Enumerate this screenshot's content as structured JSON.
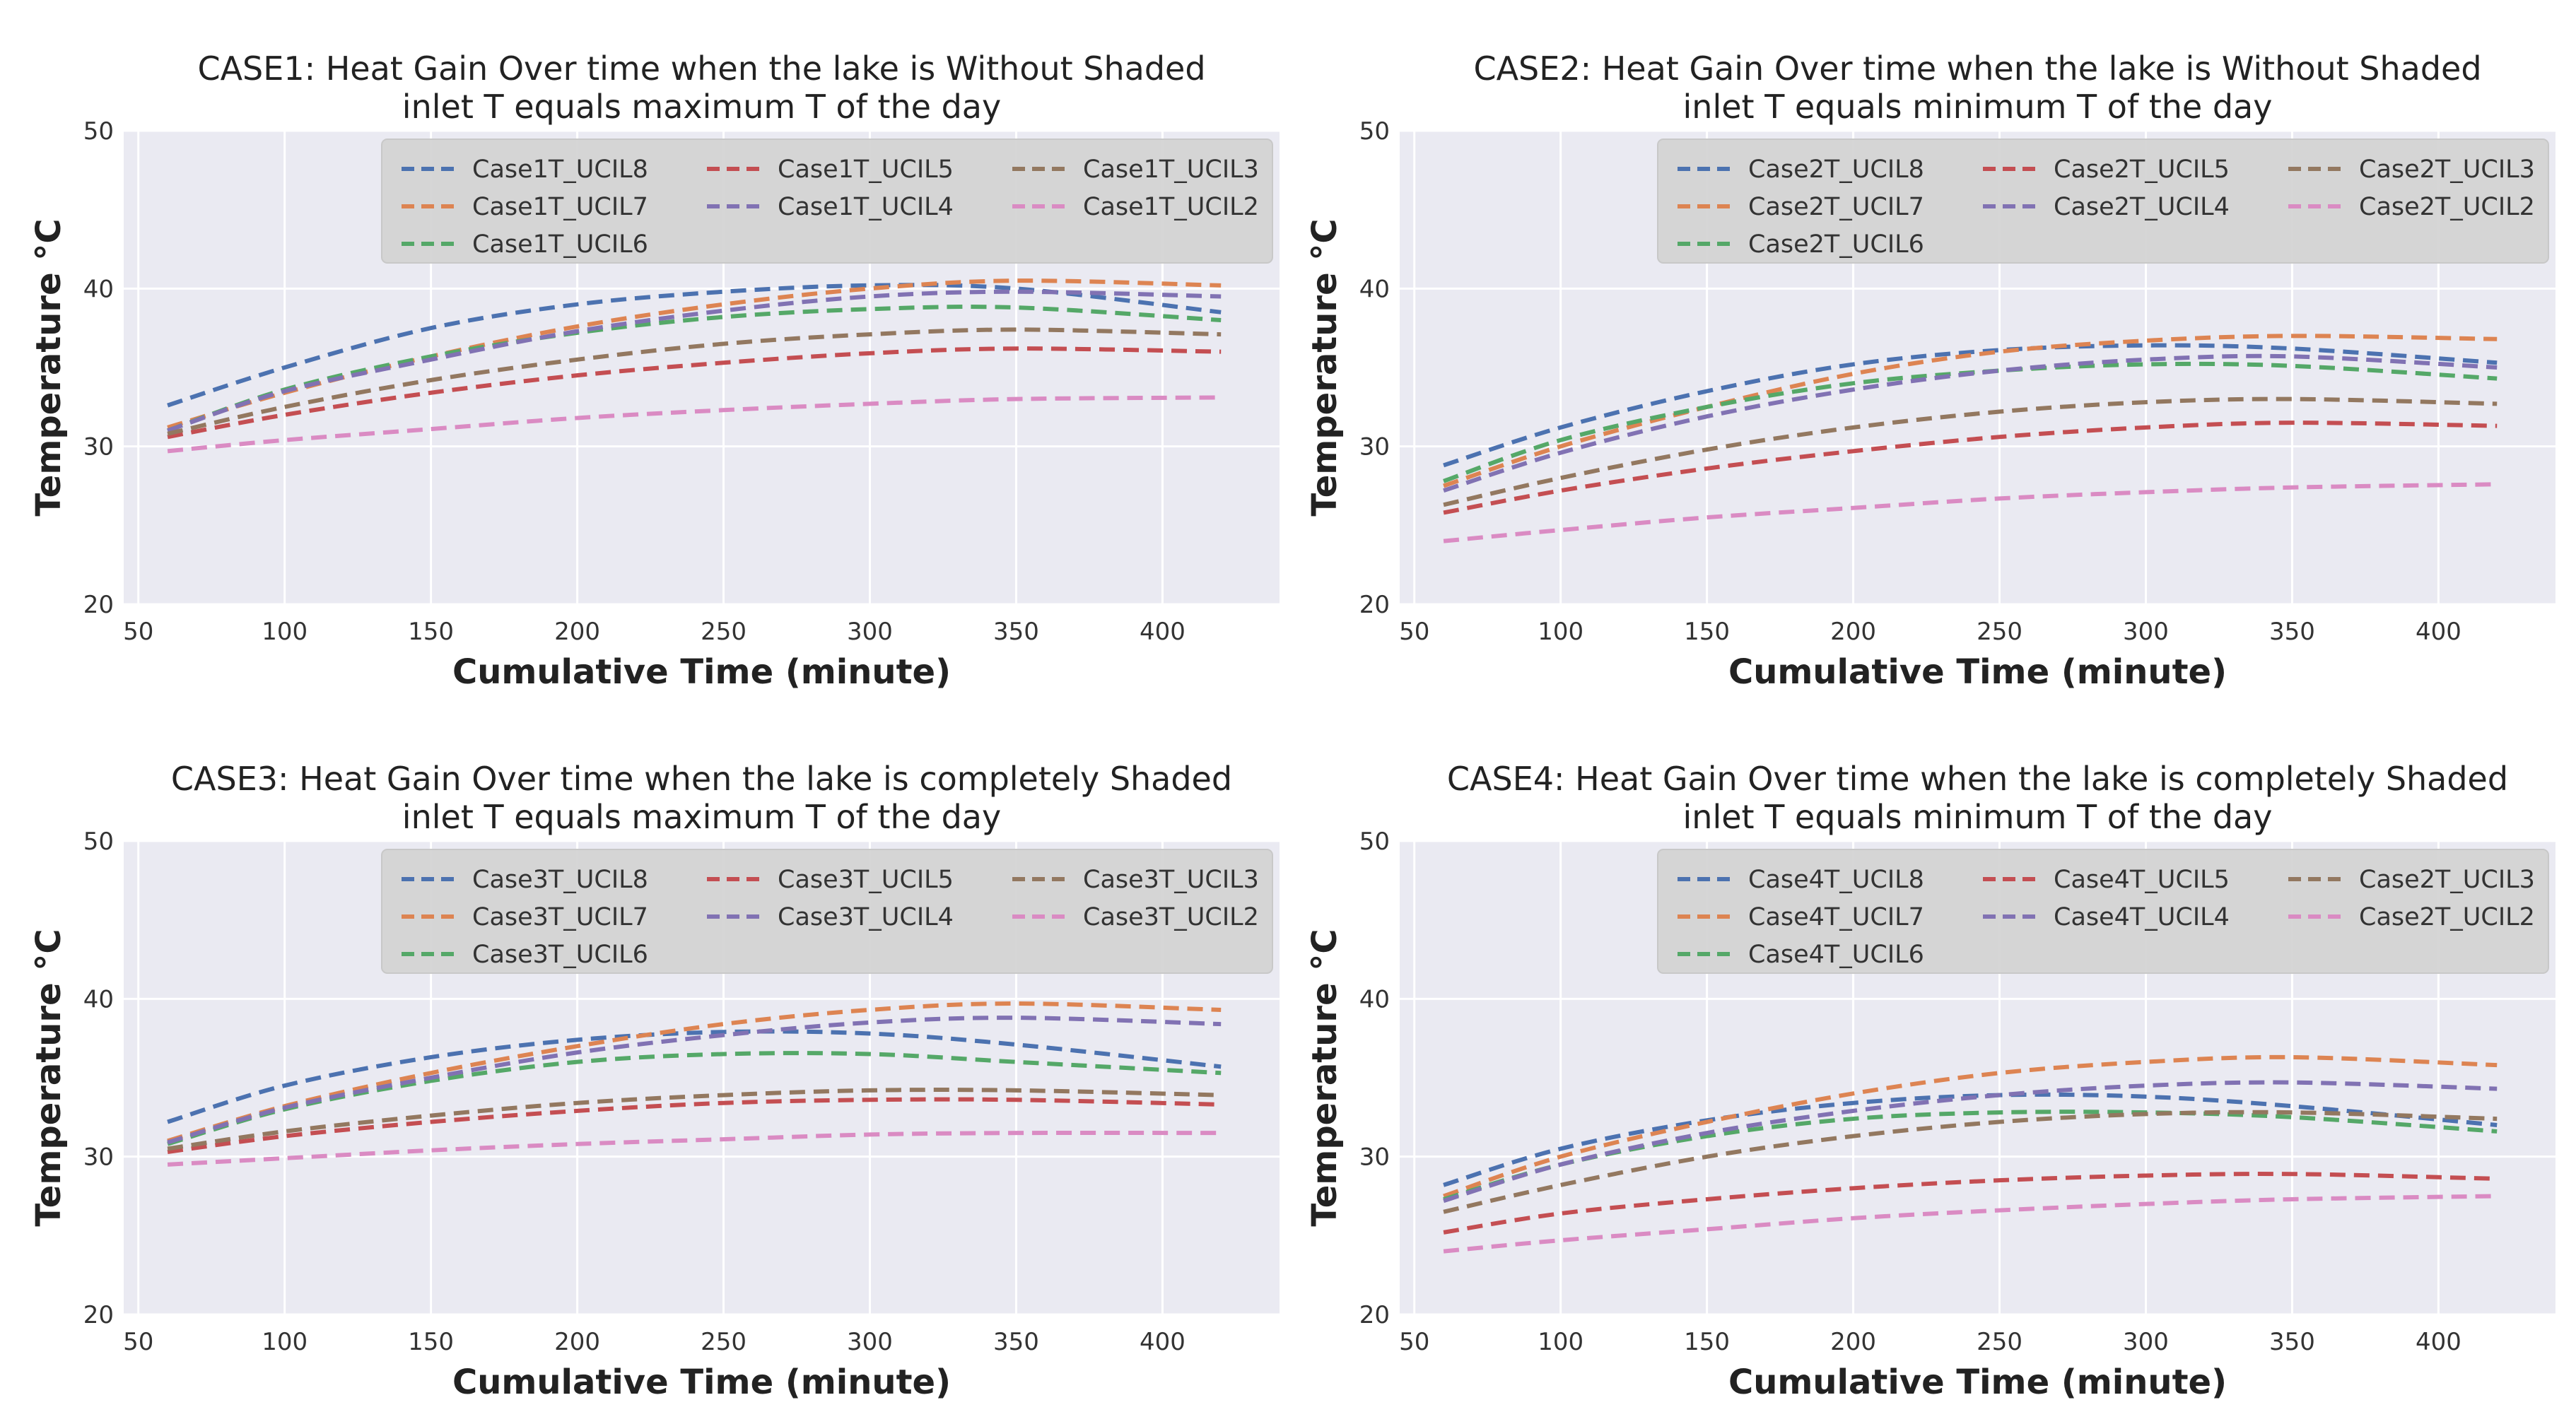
{
  "colors": {
    "background": "#eaeaf2",
    "grid": "#ffffff",
    "legend_bg": "#d3d3d3",
    "UCIL8": "#4c72b0",
    "UCIL7": "#dd8452",
    "UCIL6": "#55a868",
    "UCIL5": "#c44e52",
    "UCIL4": "#8172b3",
    "UCIL3": "#937860",
    "UCIL2": "#da8bc3"
  },
  "chart_data": [
    {
      "type": "line",
      "title_line1": "CASE1: Heat Gain Over time when the lake is Without Shaded",
      "title_line2": "inlet T equals maximum T of the day",
      "xlabel": "Cumulative Time  (minute)",
      "ylabel": "Temperature °C",
      "xlim": [
        45,
        440
      ],
      "ylim": [
        20,
        50
      ],
      "xticks": [
        50,
        100,
        150,
        200,
        250,
        300,
        350,
        400
      ],
      "yticks": [
        20,
        30,
        40,
        50
      ],
      "grid": true,
      "legend_position": "top-right",
      "line_style": "dashed",
      "x": [
        60,
        100,
        150,
        200,
        250,
        300,
        350,
        420
      ],
      "series": [
        {
          "name": "Case1T_UCIL8",
          "color_key": "UCIL8",
          "values": [
            32.6,
            35.0,
            37.5,
            39.0,
            39.8,
            40.2,
            40.0,
            38.5
          ]
        },
        {
          "name": "Case1T_UCIL7",
          "color_key": "UCIL7",
          "values": [
            31.2,
            33.4,
            35.7,
            37.6,
            39.0,
            40.0,
            40.5,
            40.2
          ]
        },
        {
          "name": "Case1T_UCIL6",
          "color_key": "UCIL6",
          "values": [
            31.0,
            33.6,
            35.7,
            37.2,
            38.2,
            38.7,
            38.8,
            38.0
          ]
        },
        {
          "name": "Case1T_UCIL5",
          "color_key": "UCIL5",
          "values": [
            30.6,
            32.0,
            33.4,
            34.5,
            35.3,
            35.9,
            36.2,
            36.0
          ]
        },
        {
          "name": "Case1T_UCIL4",
          "color_key": "UCIL4",
          "values": [
            31.0,
            33.5,
            35.5,
            37.3,
            38.6,
            39.5,
            39.8,
            39.5
          ]
        },
        {
          "name": "Case1T_UCIL3",
          "color_key": "UCIL3",
          "values": [
            30.8,
            32.5,
            34.2,
            35.5,
            36.5,
            37.1,
            37.4,
            37.1
          ]
        },
        {
          "name": "Case1T_UCIL2",
          "color_key": "UCIL2",
          "values": [
            29.7,
            30.4,
            31.1,
            31.8,
            32.3,
            32.7,
            33.0,
            33.1
          ]
        }
      ]
    },
    {
      "type": "line",
      "title_line1": "CASE2: Heat Gain Over time when the lake is Without Shaded",
      "title_line2": "inlet T equals minimum T of the day",
      "xlabel": "Cumulative Time  (minute)",
      "ylabel": "Temperature °C",
      "xlim": [
        45,
        440
      ],
      "ylim": [
        20,
        50
      ],
      "xticks": [
        50,
        100,
        150,
        200,
        250,
        300,
        350,
        400
      ],
      "yticks": [
        20,
        30,
        40,
        50
      ],
      "grid": true,
      "legend_position": "top-right",
      "line_style": "dashed",
      "x": [
        60,
        100,
        150,
        200,
        250,
        300,
        350,
        420
      ],
      "series": [
        {
          "name": "Case2T_UCIL8",
          "color_key": "UCIL8",
          "values": [
            28.8,
            31.2,
            33.5,
            35.2,
            36.1,
            36.4,
            36.2,
            35.3
          ]
        },
        {
          "name": "Case2T_UCIL7",
          "color_key": "UCIL7",
          "values": [
            27.5,
            30.0,
            32.5,
            34.6,
            36.0,
            36.7,
            37.0,
            36.8
          ]
        },
        {
          "name": "Case2T_UCIL6",
          "color_key": "UCIL6",
          "values": [
            27.8,
            30.4,
            32.5,
            34.0,
            34.8,
            35.2,
            35.1,
            34.3
          ]
        },
        {
          "name": "Case2T_UCIL5",
          "color_key": "UCIL5",
          "values": [
            25.8,
            27.2,
            28.6,
            29.7,
            30.6,
            31.2,
            31.5,
            31.3
          ]
        },
        {
          "name": "Case2T_UCIL4",
          "color_key": "UCIL4",
          "values": [
            27.2,
            29.6,
            31.9,
            33.6,
            34.8,
            35.5,
            35.7,
            35.0
          ]
        },
        {
          "name": "Case2T_UCIL3",
          "color_key": "UCIL3",
          "values": [
            26.3,
            28.0,
            29.8,
            31.2,
            32.2,
            32.8,
            33.0,
            32.7
          ]
        },
        {
          "name": "Case2T_UCIL2",
          "color_key": "UCIL2",
          "values": [
            24.0,
            24.7,
            25.5,
            26.1,
            26.7,
            27.1,
            27.4,
            27.6
          ]
        }
      ]
    },
    {
      "type": "line",
      "title_line1": "CASE3: Heat Gain Over time when the lake is completely Shaded",
      "title_line2": "inlet T equals maximum T of the day",
      "xlabel": "Cumulative Time  (minute)",
      "ylabel": "Temperature °C",
      "xlim": [
        45,
        440
      ],
      "ylim": [
        20,
        50
      ],
      "xticks": [
        50,
        100,
        150,
        200,
        250,
        300,
        350,
        400
      ],
      "yticks": [
        20,
        30,
        40,
        50
      ],
      "grid": true,
      "legend_position": "top-right",
      "line_style": "dashed",
      "x": [
        60,
        100,
        150,
        200,
        250,
        300,
        350,
        420
      ],
      "series": [
        {
          "name": "Case3T_UCIL8",
          "color_key": "UCIL8",
          "values": [
            32.2,
            34.5,
            36.3,
            37.4,
            37.9,
            37.8,
            37.1,
            35.7
          ]
        },
        {
          "name": "Case3T_UCIL7",
          "color_key": "UCIL7",
          "values": [
            31.0,
            33.2,
            35.3,
            37.0,
            38.4,
            39.3,
            39.7,
            39.3
          ]
        },
        {
          "name": "Case3T_UCIL6",
          "color_key": "UCIL6",
          "values": [
            30.8,
            33.0,
            34.8,
            36.0,
            36.5,
            36.5,
            36.0,
            35.3
          ]
        },
        {
          "name": "Case3T_UCIL5",
          "color_key": "UCIL5",
          "values": [
            30.3,
            31.3,
            32.2,
            32.9,
            33.4,
            33.6,
            33.6,
            33.3
          ]
        },
        {
          "name": "Case3T_UCIL4",
          "color_key": "UCIL4",
          "values": [
            30.9,
            33.1,
            35.0,
            36.6,
            37.7,
            38.5,
            38.8,
            38.4
          ]
        },
        {
          "name": "Case3T_UCIL3",
          "color_key": "UCIL3",
          "values": [
            30.5,
            31.6,
            32.6,
            33.4,
            33.9,
            34.2,
            34.2,
            33.9
          ]
        },
        {
          "name": "Case3T_UCIL2",
          "color_key": "UCIL2",
          "values": [
            29.5,
            29.9,
            30.4,
            30.8,
            31.1,
            31.4,
            31.5,
            31.5
          ]
        }
      ]
    },
    {
      "type": "line",
      "title_line1": "CASE4: Heat Gain Over time when the lake is completely Shaded",
      "title_line2": "inlet T equals minimum T of the day",
      "xlabel": "Cumulative Time  (minute)",
      "ylabel": "Temperature °C",
      "xlim": [
        45,
        440
      ],
      "ylim": [
        20,
        50
      ],
      "xticks": [
        50,
        100,
        150,
        200,
        250,
        300,
        350,
        400
      ],
      "yticks": [
        20,
        30,
        40,
        50
      ],
      "grid": true,
      "legend_position": "top-right",
      "line_style": "dashed",
      "x": [
        60,
        100,
        150,
        200,
        250,
        300,
        350,
        420
      ],
      "series": [
        {
          "name": "Case4T_UCIL8",
          "color_key": "UCIL8",
          "values": [
            28.2,
            30.5,
            32.3,
            33.4,
            33.9,
            33.8,
            33.2,
            32.0
          ]
        },
        {
          "name": "Case4T_UCIL7",
          "color_key": "UCIL7",
          "values": [
            27.5,
            30.0,
            32.2,
            34.0,
            35.3,
            36.0,
            36.3,
            35.8
          ]
        },
        {
          "name": "Case4T_UCIL6",
          "color_key": "UCIL6",
          "values": [
            27.3,
            29.5,
            31.3,
            32.4,
            32.8,
            32.8,
            32.5,
            31.6
          ]
        },
        {
          "name": "Case4T_UCIL5",
          "color_key": "UCIL5",
          "values": [
            25.2,
            26.4,
            27.3,
            28.0,
            28.5,
            28.8,
            28.9,
            28.6
          ]
        },
        {
          "name": "Case4T_UCIL4",
          "color_key": "UCIL4",
          "values": [
            27.2,
            29.5,
            31.5,
            32.9,
            33.9,
            34.5,
            34.7,
            34.3
          ]
        },
        {
          "name": "Case2T_UCIL3",
          "color_key": "UCIL3",
          "values": [
            26.5,
            28.2,
            30.0,
            31.3,
            32.2,
            32.7,
            32.8,
            32.4
          ]
        },
        {
          "name": "Case2T_UCIL2",
          "color_key": "UCIL2",
          "values": [
            24.0,
            24.7,
            25.4,
            26.1,
            26.6,
            27.0,
            27.3,
            27.5
          ]
        }
      ]
    }
  ]
}
